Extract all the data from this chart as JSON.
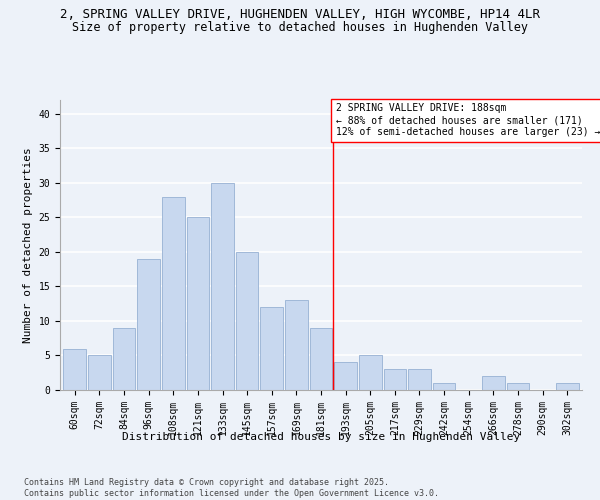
{
  "title": "2, SPRING VALLEY DRIVE, HUGHENDEN VALLEY, HIGH WYCOMBE, HP14 4LR",
  "subtitle": "Size of property relative to detached houses in Hughenden Valley",
  "xlabel": "Distribution of detached houses by size in Hughenden Valley",
  "ylabel": "Number of detached properties",
  "bar_labels": [
    "60sqm",
    "72sqm",
    "84sqm",
    "96sqm",
    "108sqm",
    "121sqm",
    "133sqm",
    "145sqm",
    "157sqm",
    "169sqm",
    "181sqm",
    "193sqm",
    "205sqm",
    "217sqm",
    "229sqm",
    "242sqm",
    "254sqm",
    "266sqm",
    "278sqm",
    "290sqm",
    "302sqm"
  ],
  "bar_values": [
    6,
    5,
    9,
    19,
    28,
    25,
    30,
    20,
    12,
    13,
    9,
    4,
    5,
    3,
    3,
    1,
    0,
    2,
    1,
    0,
    1
  ],
  "bar_color": "#c8d8ef",
  "bar_edgecolor": "#a0b8d8",
  "bg_color": "#edf2f9",
  "grid_color": "#ffffff",
  "vline_x": 10.5,
  "vline_color": "red",
  "annotation_text": "2 SPRING VALLEY DRIVE: 188sqm\n← 88% of detached houses are smaller (171)\n12% of semi-detached houses are larger (23) →",
  "ylim": [
    0,
    42
  ],
  "yticks": [
    0,
    5,
    10,
    15,
    20,
    25,
    30,
    35,
    40
  ],
  "footnote": "Contains HM Land Registry data © Crown copyright and database right 2025.\nContains public sector information licensed under the Open Government Licence v3.0.",
  "title_fontsize": 9,
  "subtitle_fontsize": 8.5,
  "axis_fontsize": 8,
  "tick_fontsize": 7,
  "annotation_fontsize": 7,
  "ylabel_fontsize": 8
}
